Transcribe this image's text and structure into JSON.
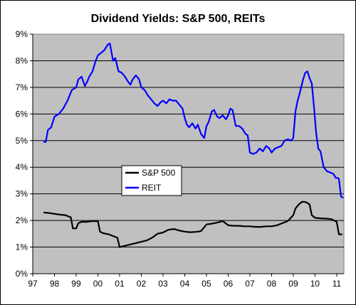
{
  "chart_data": {
    "type": "line",
    "title": "Dividend Yields: S&P 500, REITs",
    "xlabel": "",
    "ylabel": "",
    "xlim": [
      1997.0,
      2011.33
    ],
    "ylim": [
      0,
      9
    ],
    "x_tick_values": [
      1997,
      1998,
      1999,
      2000,
      2001,
      2002,
      2003,
      2004,
      2005,
      2006,
      2007,
      2008,
      2009,
      2010,
      2011
    ],
    "x_tick_labels": [
      "97",
      "98",
      "99",
      "00",
      "01",
      "02",
      "03",
      "04",
      "05",
      "06",
      "07",
      "08",
      "09",
      "10",
      "11"
    ],
    "y_tick_values": [
      0,
      1,
      2,
      3,
      4,
      5,
      6,
      7,
      8,
      9
    ],
    "y_tick_labels": [
      "0%",
      "1%",
      "2%",
      "3%",
      "4%",
      "5%",
      "6%",
      "7%",
      "8%",
      "9%"
    ],
    "plot_background": "#c0c0c0",
    "grid": true,
    "legend_position": "center-left",
    "series": [
      {
        "name": "S&P 500",
        "color": "#000000",
        "x": [
          1997.5,
          1997.75,
          1998.0,
          1998.25,
          1998.5,
          1998.75,
          1998.85,
          1999.0,
          1999.1,
          1999.25,
          1999.5,
          1999.75,
          2000.0,
          2000.1,
          2000.25,
          2000.5,
          2000.75,
          2000.9,
          2001.0,
          2001.25,
          2001.5,
          2001.75,
          2002.0,
          2002.25,
          2002.5,
          2002.75,
          2003.0,
          2003.25,
          2003.5,
          2003.75,
          2004.0,
          2004.25,
          2004.5,
          2004.75,
          2005.0,
          2005.25,
          2005.5,
          2005.75,
          2006.0,
          2006.25,
          2006.5,
          2006.75,
          2007.0,
          2007.25,
          2007.5,
          2007.75,
          2008.0,
          2008.25,
          2008.5,
          2008.75,
          2009.0,
          2009.1,
          2009.25,
          2009.4,
          2009.5,
          2009.6,
          2009.75,
          2009.85,
          2010.0,
          2010.25,
          2010.5,
          2010.75,
          2011.0,
          2011.1,
          2011.25
        ],
        "y": [
          2.3,
          2.28,
          2.25,
          2.22,
          2.2,
          2.12,
          1.7,
          1.7,
          1.9,
          1.95,
          1.95,
          1.98,
          1.97,
          1.58,
          1.52,
          1.48,
          1.4,
          1.35,
          1.0,
          1.05,
          1.1,
          1.15,
          1.2,
          1.25,
          1.35,
          1.5,
          1.55,
          1.65,
          1.68,
          1.62,
          1.58,
          1.56,
          1.57,
          1.6,
          1.85,
          1.88,
          1.92,
          1.98,
          1.82,
          1.8,
          1.8,
          1.78,
          1.78,
          1.76,
          1.76,
          1.78,
          1.78,
          1.82,
          1.9,
          1.98,
          2.2,
          2.45,
          2.6,
          2.7,
          2.7,
          2.68,
          2.6,
          2.2,
          2.1,
          2.08,
          2.07,
          2.05,
          1.95,
          1.48,
          1.48
        ]
      },
      {
        "name": "REIT",
        "color": "#0000ff",
        "x": [
          1997.5,
          1997.6,
          1997.7,
          1997.85,
          1998.0,
          1998.2,
          1998.4,
          1998.6,
          1998.8,
          1999.0,
          1999.1,
          1999.25,
          1999.4,
          1999.5,
          1999.6,
          1999.75,
          1999.9,
          2000.0,
          2000.15,
          2000.3,
          2000.45,
          2000.55,
          2000.7,
          2000.8,
          2000.95,
          2001.1,
          2001.25,
          2001.4,
          2001.5,
          2001.6,
          2001.75,
          2001.9,
          2002.0,
          2002.15,
          2002.3,
          2002.45,
          2002.6,
          2002.75,
          2002.9,
          2003.0,
          2003.15,
          2003.3,
          2003.45,
          2003.6,
          2003.75,
          2003.9,
          2004.0,
          2004.1,
          2004.2,
          2004.35,
          2004.5,
          2004.6,
          2004.75,
          2004.9,
          2005.0,
          2005.1,
          2005.25,
          2005.35,
          2005.5,
          2005.6,
          2005.75,
          2005.9,
          2006.0,
          2006.1,
          2006.2,
          2006.35,
          2006.5,
          2006.65,
          2006.8,
          2006.9,
          2007.0,
          2007.15,
          2007.3,
          2007.45,
          2007.6,
          2007.75,
          2007.9,
          2008.0,
          2008.15,
          2008.3,
          2008.45,
          2008.6,
          2008.75,
          2008.9,
          2009.0,
          2009.1,
          2009.2,
          2009.3,
          2009.45,
          2009.55,
          2009.65,
          2009.75,
          2009.85,
          2009.95,
          2010.05,
          2010.15,
          2010.25,
          2010.4,
          2010.55,
          2010.7,
          2010.85,
          2010.95,
          2011.05,
          2011.1,
          2011.2,
          2011.3
        ],
        "y": [
          4.95,
          4.95,
          5.4,
          5.5,
          5.9,
          6.0,
          6.2,
          6.5,
          6.9,
          7.0,
          7.3,
          7.4,
          7.05,
          7.2,
          7.4,
          7.6,
          8.0,
          8.2,
          8.3,
          8.4,
          8.6,
          8.65,
          8.0,
          8.1,
          7.6,
          7.55,
          7.4,
          7.2,
          7.1,
          7.3,
          7.45,
          7.3,
          7.0,
          6.9,
          6.7,
          6.55,
          6.4,
          6.3,
          6.45,
          6.5,
          6.4,
          6.55,
          6.5,
          6.5,
          6.35,
          6.2,
          5.85,
          5.6,
          5.5,
          5.65,
          5.45,
          5.6,
          5.25,
          5.1,
          5.55,
          5.7,
          6.1,
          6.15,
          5.9,
          5.85,
          5.95,
          5.8,
          5.95,
          6.2,
          6.15,
          5.55,
          5.55,
          5.45,
          5.25,
          5.2,
          4.55,
          4.5,
          4.55,
          4.7,
          4.6,
          4.8,
          4.7,
          4.55,
          4.7,
          4.75,
          4.8,
          5.0,
          5.05,
          5.0,
          5.1,
          6.1,
          6.5,
          6.8,
          7.3,
          7.55,
          7.6,
          7.35,
          7.15,
          6.3,
          5.3,
          4.7,
          4.6,
          4.0,
          3.85,
          3.8,
          3.75,
          3.6,
          3.6,
          3.55,
          2.9,
          2.85
        ]
      }
    ]
  }
}
